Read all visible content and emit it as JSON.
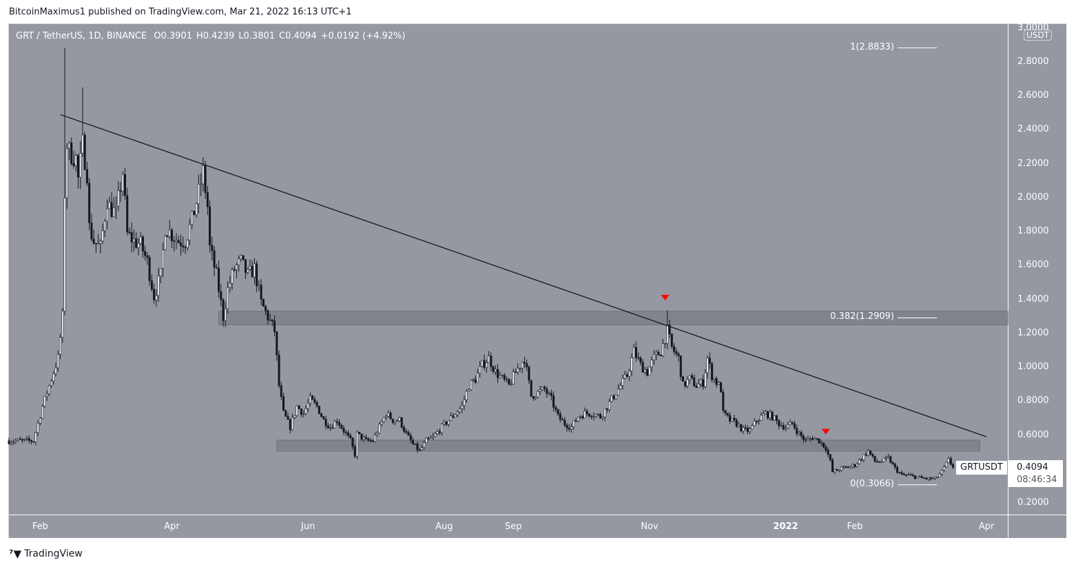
{
  "header": {
    "published": "BitcoinMaximus1 published on TradingView.com, Mar 21, 2022 16:13 UTC+1"
  },
  "legend": {
    "symbol": "GRT / TetherUS, 1D, BINANCE",
    "o_label": "O",
    "o": "0.3901",
    "h_label": "H",
    "h": "0.4239",
    "l_label": "L",
    "l": "0.3801",
    "c_label": "C",
    "c": "0.4094",
    "change": "+0.0192 (+4.92%)"
  },
  "axis": {
    "currency": "USDT"
  },
  "price_label": {
    "symbol": "GRTUSDT",
    "price": "0.4094",
    "countdown": "08:46:34"
  },
  "footer": {
    "brand": "TradingView"
  },
  "colors": {
    "background": "#9598a1",
    "up": "#ffffff",
    "down": "#131722",
    "marker": "#ff0000",
    "zone": "#7b7e87"
  },
  "chart_data": {
    "type": "candlestick",
    "title": "GRT / TetherUS, 1D, BINANCE",
    "start_date": "2021-01-18",
    "ylim": [
      0.0622,
      2.9553
    ],
    "yticks": [
      "3.0000",
      "2.8000",
      "2.6000",
      "2.4000",
      "2.2000",
      "2.0000",
      "1.8000",
      "1.6000",
      "1.4000",
      "1.2000",
      "1.0000",
      "0.8000",
      "0.6000",
      "0.2000"
    ],
    "ytick_values": [
      3.0,
      2.8,
      2.6,
      2.4,
      2.2,
      2.0,
      1.8,
      1.6,
      1.4,
      1.2,
      1.0,
      0.8,
      0.6,
      0.2
    ],
    "xticks": [
      {
        "label": "Feb",
        "d": 14
      },
      {
        "label": "Apr",
        "d": 73
      },
      {
        "label": "Jun",
        "d": 134
      },
      {
        "label": "Aug",
        "d": 195
      },
      {
        "label": "Sep",
        "d": 226
      },
      {
        "label": "Nov",
        "d": 287
      },
      {
        "label": "2022",
        "d": 348,
        "bold": true
      },
      {
        "label": "Feb",
        "d": 379
      },
      {
        "label": "Apr",
        "d": 438
      }
    ],
    "closes_by_day": [
      [
        0,
        0.566
      ],
      [
        11,
        0.566
      ],
      [
        15,
        0.769
      ],
      [
        19,
        0.931
      ],
      [
        22,
        1.053
      ],
      [
        24,
        1.297
      ],
      [
        25,
        2.028
      ],
      [
        26,
        2.313
      ],
      [
        27,
        2.272
      ],
      [
        30,
        2.231
      ],
      [
        31,
        2.109
      ],
      [
        33,
        2.313
      ],
      [
        35,
        2.15
      ],
      [
        36,
        1.825
      ],
      [
        38,
        1.744
      ],
      [
        41,
        1.703
      ],
      [
        44,
        1.988
      ],
      [
        45,
        1.947
      ],
      [
        48,
        1.906
      ],
      [
        51,
        2.15
      ],
      [
        53,
        1.784
      ],
      [
        56,
        1.744
      ],
      [
        59,
        1.723
      ],
      [
        62,
        1.622
      ],
      [
        65,
        1.419
      ],
      [
        68,
        1.541
      ],
      [
        70,
        1.825
      ],
      [
        73,
        1.784
      ],
      [
        76,
        1.744
      ],
      [
        79,
        1.744
      ],
      [
        82,
        1.866
      ],
      [
        85,
        2.028
      ],
      [
        87,
        2.15
      ],
      [
        89,
        1.947
      ],
      [
        90,
        1.703
      ],
      [
        93,
        1.541
      ],
      [
        95,
        1.378
      ],
      [
        96,
        1.297
      ],
      [
        98,
        1.459
      ],
      [
        101,
        1.581
      ],
      [
        104,
        1.622
      ],
      [
        107,
        1.541
      ],
      [
        110,
        1.581
      ],
      [
        113,
        1.378
      ],
      [
        116,
        1.297
      ],
      [
        119,
        1.216
      ],
      [
        121,
        0.891
      ],
      [
        123,
        0.728
      ],
      [
        126,
        0.647
      ],
      [
        129,
        0.769
      ],
      [
        132,
        0.728
      ],
      [
        135,
        0.809
      ],
      [
        138,
        0.769
      ],
      [
        141,
        0.688
      ],
      [
        144,
        0.647
      ],
      [
        147,
        0.688
      ],
      [
        150,
        0.627
      ],
      [
        153,
        0.566
      ],
      [
        155,
        0.484
      ],
      [
        156,
        0.606
      ],
      [
        160,
        0.566
      ],
      [
        163,
        0.566
      ],
      [
        166,
        0.647
      ],
      [
        169,
        0.728
      ],
      [
        172,
        0.688
      ],
      [
        175,
        0.688
      ],
      [
        178,
        0.606
      ],
      [
        181,
        0.545
      ],
      [
        184,
        0.505
      ],
      [
        187,
        0.566
      ],
      [
        190,
        0.586
      ],
      [
        194,
        0.647
      ],
      [
        197,
        0.688
      ],
      [
        200,
        0.728
      ],
      [
        203,
        0.769
      ],
      [
        206,
        0.891
      ],
      [
        209,
        0.931
      ],
      [
        212,
        1.013
      ],
      [
        215,
        1.053
      ],
      [
        218,
        0.972
      ],
      [
        221,
        0.931
      ],
      [
        224,
        0.891
      ],
      [
        227,
        0.972
      ],
      [
        231,
        1.053
      ],
      [
        234,
        0.83
      ],
      [
        237,
        0.85
      ],
      [
        240,
        0.87
      ],
      [
        243,
        0.809
      ],
      [
        246,
        0.708
      ],
      [
        249,
        0.667
      ],
      [
        252,
        0.647
      ],
      [
        255,
        0.708
      ],
      [
        258,
        0.728
      ],
      [
        261,
        0.728
      ],
      [
        265,
        0.708
      ],
      [
        268,
        0.769
      ],
      [
        271,
        0.83
      ],
      [
        274,
        0.891
      ],
      [
        277,
        0.952
      ],
      [
        280,
        1.094
      ],
      [
        283,
        1.013
      ],
      [
        286,
        0.972
      ],
      [
        289,
        1.053
      ],
      [
        292,
        1.094
      ],
      [
        295,
        1.216
      ],
      [
        297,
        1.114
      ],
      [
        300,
        1.053
      ],
      [
        302,
        0.891
      ],
      [
        305,
        0.931
      ],
      [
        308,
        0.891
      ],
      [
        311,
        0.911
      ],
      [
        313,
        1.053
      ],
      [
        315,
        0.952
      ],
      [
        319,
        0.87
      ],
      [
        320,
        0.728
      ],
      [
        323,
        0.688
      ],
      [
        326,
        0.667
      ],
      [
        329,
        0.627
      ],
      [
        332,
        0.627
      ],
      [
        335,
        0.688
      ],
      [
        339,
        0.728
      ],
      [
        342,
        0.708
      ],
      [
        345,
        0.667
      ],
      [
        348,
        0.647
      ],
      [
        351,
        0.667
      ],
      [
        354,
        0.606
      ],
      [
        357,
        0.566
      ],
      [
        360,
        0.586
      ],
      [
        363,
        0.566
      ],
      [
        366,
        0.525
      ],
      [
        368,
        0.444
      ],
      [
        369,
        0.383
      ],
      [
        373,
        0.403
      ],
      [
        376,
        0.411
      ],
      [
        379,
        0.423
      ],
      [
        382,
        0.464
      ],
      [
        385,
        0.505
      ],
      [
        388,
        0.444
      ],
      [
        391,
        0.444
      ],
      [
        394,
        0.464
      ],
      [
        397,
        0.403
      ],
      [
        400,
        0.363
      ],
      [
        403,
        0.363
      ],
      [
        406,
        0.354
      ],
      [
        409,
        0.346
      ],
      [
        412,
        0.342
      ],
      [
        415,
        0.342
      ],
      [
        418,
        0.383
      ],
      [
        421,
        0.452
      ],
      [
        423,
        0.4094
      ]
    ],
    "wick_highs": [
      [
        25,
        2.8833
      ],
      [
        33,
        2.65
      ],
      [
        295,
        1.335
      ]
    ],
    "trendline": {
      "start": {
        "d": 23,
        "price": 2.49
      },
      "end": {
        "d": 438,
        "price": 0.59
      }
    },
    "zones": [
      {
        "from_d": 94,
        "price_low": 1.25,
        "price_high": 1.33
      },
      {
        "from_d": 120,
        "to_d": 435,
        "price_low": 0.505,
        "price_high": 0.57
      }
    ],
    "markers": [
      {
        "d": 294,
        "price": 1.41
      },
      {
        "d": 366,
        "price": 0.62
      }
    ],
    "fib_levels": [
      {
        "label": "1(2.8833)",
        "price": 2.8833
      },
      {
        "label": "0.382(1.2909)",
        "price": 1.2909
      },
      {
        "label": "0(0.3066)",
        "price": 0.3066
      }
    ]
  }
}
